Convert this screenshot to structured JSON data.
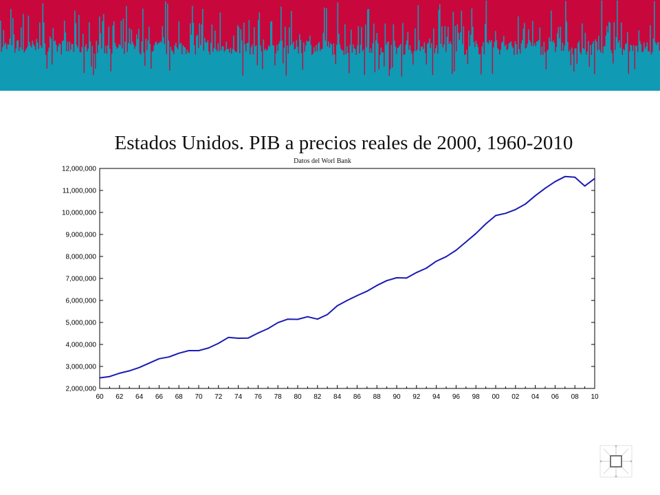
{
  "colors": {
    "banner_top": "#c8083c",
    "banner_bars": "#109ab4",
    "line": "#1a1ab4",
    "axis": "#000000"
  },
  "chart_data": {
    "type": "line",
    "title": "Estados Unidos. PIB a precios reales de 2000, 1960-2010",
    "subtitle": "Datos del Worl Bank",
    "xlabel": "",
    "ylabel": "",
    "xlim": [
      1960,
      2010
    ],
    "ylim": [
      2000000,
      12000000
    ],
    "grid": false,
    "y_ticks": [
      2000000,
      3000000,
      4000000,
      5000000,
      6000000,
      7000000,
      8000000,
      9000000,
      10000000,
      11000000,
      12000000
    ],
    "y_tick_labels": [
      "2,000,000",
      "3,000,000",
      "4,000,000",
      "5,000,000",
      "6,000,000",
      "7,000,000",
      "8,000,000",
      "9,000,000",
      "10,000,000",
      "11,000,000",
      "12,000,000"
    ],
    "x_ticks": [
      1960,
      1962,
      1964,
      1966,
      1968,
      1970,
      1972,
      1974,
      1976,
      1978,
      1980,
      1982,
      1984,
      1986,
      1988,
      1990,
      1992,
      1994,
      1996,
      1998,
      2000,
      2002,
      2004,
      2006,
      2008,
      2010
    ],
    "x_tick_labels": [
      "60",
      "62",
      "64",
      "66",
      "68",
      "70",
      "72",
      "74",
      "76",
      "78",
      "80",
      "82",
      "84",
      "86",
      "88",
      "90",
      "92",
      "94",
      "96",
      "98",
      "00",
      "02",
      "04",
      "06",
      "08",
      "10"
    ],
    "series": [
      {
        "x": [
          1960,
          1961,
          1962,
          1963,
          1964,
          1965,
          1966,
          1967,
          1968,
          1969,
          1970,
          1971,
          1972,
          1973,
          1974,
          1975,
          1976,
          1977,
          1978,
          1979,
          1980,
          1981,
          1982,
          1983,
          1984,
          1985,
          1986,
          1987,
          1988,
          1989,
          1990,
          1991,
          1992,
          1993,
          1994,
          1995,
          1996,
          1997,
          1998,
          1999,
          2000,
          2001,
          2002,
          2003,
          2004,
          2005,
          2006,
          2007,
          2008,
          2009,
          2010
        ],
        "values": [
          2480000,
          2540000,
          2690000,
          2800000,
          2950000,
          3150000,
          3350000,
          3430000,
          3600000,
          3720000,
          3720000,
          3840000,
          4050000,
          4320000,
          4280000,
          4290000,
          4520000,
          4720000,
          4990000,
          5150000,
          5140000,
          5260000,
          5150000,
          5360000,
          5760000,
          6000000,
          6220000,
          6420000,
          6680000,
          6900000,
          7030000,
          7020000,
          7270000,
          7470000,
          7780000,
          7990000,
          8280000,
          8660000,
          9040000,
          9480000,
          9860000,
          9960000,
          10130000,
          10380000,
          10760000,
          11100000,
          11400000,
          11630000,
          11600000,
          11200000,
          11540000
        ]
      }
    ]
  }
}
